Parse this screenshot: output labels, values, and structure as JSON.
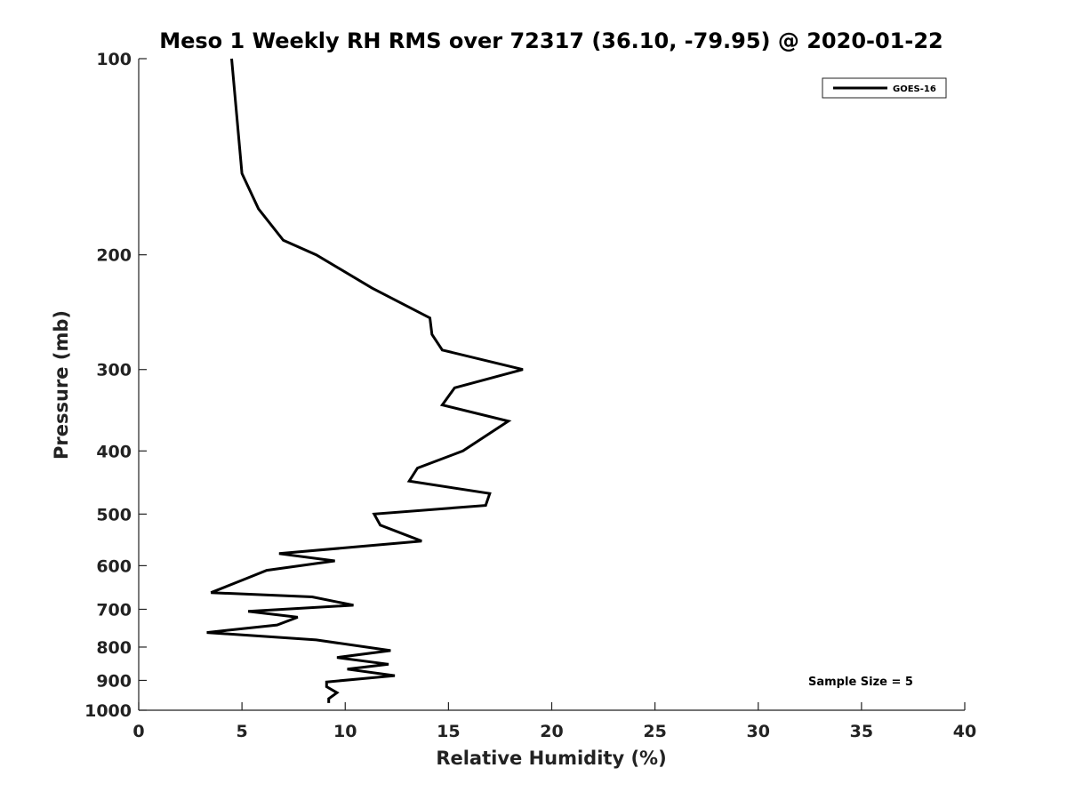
{
  "chart_data": {
    "type": "line",
    "title": "Meso 1 Weekly RH RMS over 72317 (36.10, -79.95) @ 2020-01-22",
    "xlabel": "Relative Humidity (%)",
    "ylabel": "Pressure (mb)",
    "xlim": [
      0,
      40
    ],
    "ylim": [
      100,
      1000
    ],
    "yscale": "log",
    "y_reversed": true,
    "xticks": [
      0,
      5,
      10,
      15,
      20,
      25,
      30,
      35,
      40
    ],
    "yticks": [
      100,
      200,
      300,
      400,
      500,
      600,
      700,
      800,
      900,
      1000
    ],
    "grid": false,
    "legend_position": "top-right",
    "annotation": "Sample Size = 5",
    "series": [
      {
        "name": "GOES-16",
        "color": "#000000",
        "points": [
          [
            4.5,
            100
          ],
          [
            5.0,
            150
          ],
          [
            5.8,
            170
          ],
          [
            7.0,
            190
          ],
          [
            8.6,
            200
          ],
          [
            11.3,
            225
          ],
          [
            14.1,
            250
          ],
          [
            14.2,
            265
          ],
          [
            14.7,
            280
          ],
          [
            18.6,
            300
          ],
          [
            15.3,
            320
          ],
          [
            14.7,
            340
          ],
          [
            17.9,
            360
          ],
          [
            15.7,
            400
          ],
          [
            13.5,
            425
          ],
          [
            13.1,
            445
          ],
          [
            17.0,
            465
          ],
          [
            16.8,
            485
          ],
          [
            11.4,
            500
          ],
          [
            11.7,
            520
          ],
          [
            13.7,
            550
          ],
          [
            6.8,
            575
          ],
          [
            9.5,
            590
          ],
          [
            6.2,
            610
          ],
          [
            5.1,
            630
          ],
          [
            3.5,
            660
          ],
          [
            8.4,
            670
          ],
          [
            10.4,
            690
          ],
          [
            5.3,
            705
          ],
          [
            7.7,
            720
          ],
          [
            6.7,
            740
          ],
          [
            3.3,
            760
          ],
          [
            8.6,
            780
          ],
          [
            12.2,
            810
          ],
          [
            9.6,
            830
          ],
          [
            12.1,
            850
          ],
          [
            10.1,
            865
          ],
          [
            12.4,
            885
          ],
          [
            9.1,
            905
          ],
          [
            9.1,
            920
          ],
          [
            9.6,
            940
          ],
          [
            9.2,
            960
          ],
          [
            9.2,
            975
          ]
        ]
      }
    ]
  }
}
